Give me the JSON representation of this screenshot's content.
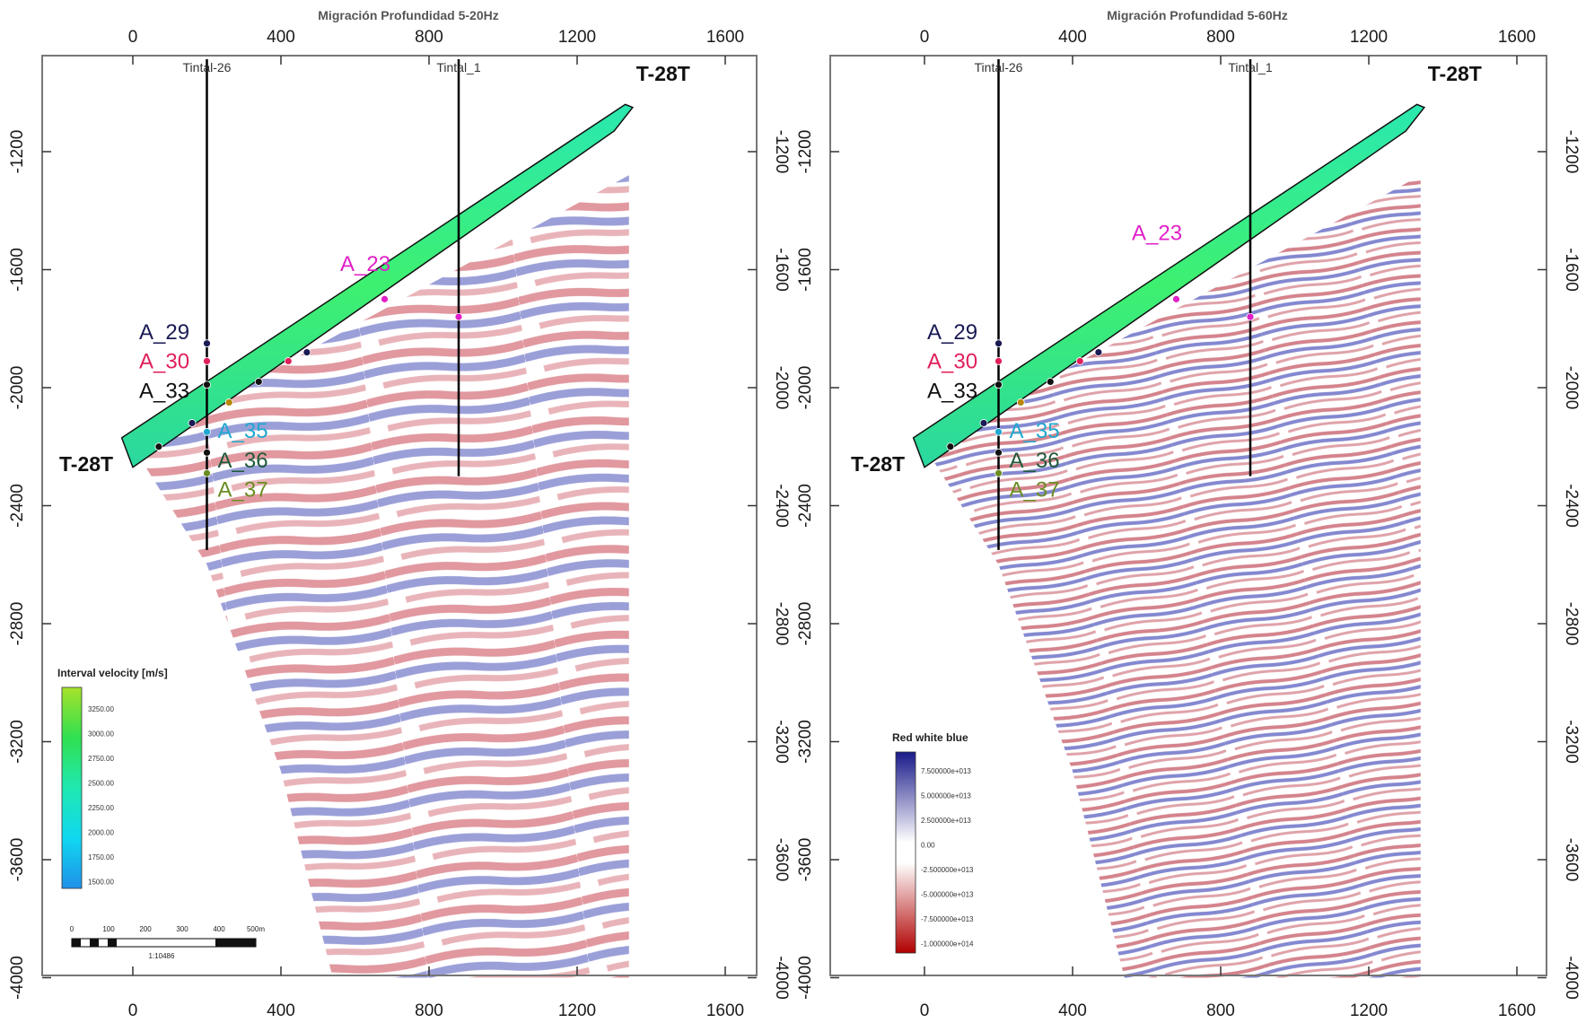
{
  "panels": [
    {
      "id": "left",
      "title": "Migración Profundidad 5-20Hz",
      "x_ticks": [
        "0",
        "400",
        "800",
        "1200",
        "1600"
      ],
      "y_ticks": [
        "-1200",
        "-1600",
        "-2000",
        "-2400",
        "-2800",
        "-3200",
        "-3600",
        "-4000"
      ],
      "wells": [
        "Tintal-26",
        "Tintal_1"
      ],
      "section_labels": {
        "top": "T-28T",
        "bottom": "T-28T"
      },
      "horizons": [
        {
          "name": "A_23",
          "color": "#e020c8"
        },
        {
          "name": "A_29",
          "color": "#1a1a55"
        },
        {
          "name": "A_30",
          "color": "#e0205a"
        },
        {
          "name": "A_33",
          "color": "#111111"
        },
        {
          "name": "A_35",
          "color": "#20a8d0"
        },
        {
          "name": "A_36",
          "color": "#1f5a3a"
        },
        {
          "name": "A_37",
          "color": "#6b8e23"
        }
      ],
      "legend": {
        "title": "Interval velocity [m/s]",
        "values": [
          "3250.00",
          "3000.00",
          "2750.00",
          "2500.00",
          "2250.00",
          "2000.00",
          "1750.00",
          "1500.00"
        ],
        "colors": [
          "#a6e22a",
          "#38e040",
          "#22e890",
          "#22e8c8",
          "#10e0f0",
          "#10c0f0",
          "#20a8f0",
          "#2090e8"
        ]
      },
      "scalebar": {
        "ticks": [
          "0",
          "100",
          "200",
          "300",
          "400",
          "500m"
        ],
        "ratio": "1:10486"
      }
    },
    {
      "id": "right",
      "title": "Migración Profundidad 5-60Hz",
      "x_ticks": [
        "0",
        "400",
        "800",
        "1200",
        "1600"
      ],
      "y_ticks": [
        "-1200",
        "-1600",
        "-2000",
        "-2400",
        "-2800",
        "-3200",
        "-3600",
        "-4000"
      ],
      "wells": [
        "Tintal-26",
        "Tintal_1"
      ],
      "section_labels": {
        "top": "T-28T",
        "bottom": "T-28T"
      },
      "horizons": [
        {
          "name": "A_23",
          "color": "#e020c8"
        },
        {
          "name": "A_29",
          "color": "#1a1a55"
        },
        {
          "name": "A_30",
          "color": "#e0205a"
        },
        {
          "name": "A_33",
          "color": "#111111"
        },
        {
          "name": "A_35",
          "color": "#20a8d0"
        },
        {
          "name": "A_36",
          "color": "#1f5a3a"
        },
        {
          "name": "A_37",
          "color": "#6b8e23"
        }
      ],
      "legend": {
        "title": "Red white blue",
        "values": [
          "7.500000e+013",
          "5.000000e+013",
          "2.500000e+013",
          "0.00",
          "-2.500000e+013",
          "-5.000000e+013",
          "-7.500000e+013",
          "-1.000000e+014"
        ],
        "colors": [
          "#1a1a8a",
          "#b00000"
        ]
      }
    }
  ]
}
